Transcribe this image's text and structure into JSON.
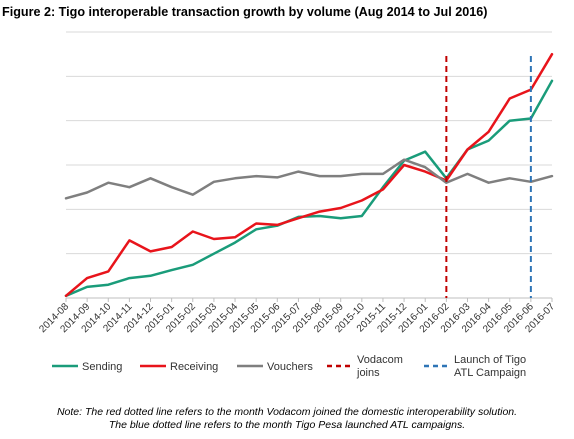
{
  "title": "Figure 2: Tigo interoperable transaction growth by volume (Aug 2014 to Jul 2016)",
  "note": {
    "line1": "Note: The red dotted line refers to the month Vodacom joined the domestic interoperability solution.",
    "line2": "The blue dotted line refers to the month Tigo Pesa launched ATL campaigns."
  },
  "chart_data": {
    "type": "line",
    "categories": [
      "2014-08",
      "2014-09",
      "2014-10",
      "2014-11",
      "2014-12",
      "2015-01",
      "2015-02",
      "2015-03",
      "2015-04",
      "2015-05",
      "2015-06",
      "2015-07",
      "2015-08",
      "2015-09",
      "2015-10",
      "2015-11",
      "2015-12",
      "2016-01",
      "2016-02",
      "2016-03",
      "2016-04",
      "2016-05",
      "2016-06",
      "2016-07"
    ],
    "ylim": [
      0,
      6
    ],
    "y_gridlines": [
      0,
      1,
      2,
      3,
      4,
      5,
      6
    ],
    "y_tick_labels_shown": false,
    "grid": true,
    "legend_position": "bottom",
    "series": [
      {
        "name": "Sending",
        "color": "#1a9c7a",
        "width": 2.5,
        "dash": "",
        "values": [
          0.05,
          0.25,
          0.3,
          0.45,
          0.5,
          0.63,
          0.75,
          1.0,
          1.25,
          1.55,
          1.63,
          1.83,
          1.85,
          1.8,
          1.85,
          2.5,
          3.1,
          3.3,
          2.7,
          3.35,
          3.55,
          4.0,
          4.05,
          4.9
        ]
      },
      {
        "name": "Receiving",
        "color": "#e8141b",
        "width": 2.5,
        "dash": "",
        "values": [
          0.05,
          0.45,
          0.6,
          1.3,
          1.05,
          1.15,
          1.5,
          1.33,
          1.37,
          1.68,
          1.65,
          1.8,
          1.95,
          2.03,
          2.2,
          2.45,
          3.0,
          2.85,
          2.65,
          3.35,
          3.75,
          4.5,
          4.7,
          5.5
        ]
      },
      {
        "name": "Vouchers",
        "color": "#7f7f7f",
        "width": 2.5,
        "dash": "",
        "values": [
          2.25,
          2.38,
          2.6,
          2.5,
          2.7,
          2.5,
          2.33,
          2.62,
          2.7,
          2.75,
          2.72,
          2.85,
          2.75,
          2.75,
          2.8,
          2.8,
          3.12,
          2.95,
          2.6,
          2.8,
          2.6,
          2.7,
          2.62,
          2.75
        ]
      }
    ],
    "markers": [
      {
        "category": "2016-02",
        "color": "#c00000",
        "label_lines": [
          "Vodacom",
          "joins"
        ]
      },
      {
        "category": "2016-06",
        "color": "#2e75b6",
        "label_lines": [
          "Launch of Tigo",
          "ATL Campaign"
        ]
      }
    ]
  }
}
